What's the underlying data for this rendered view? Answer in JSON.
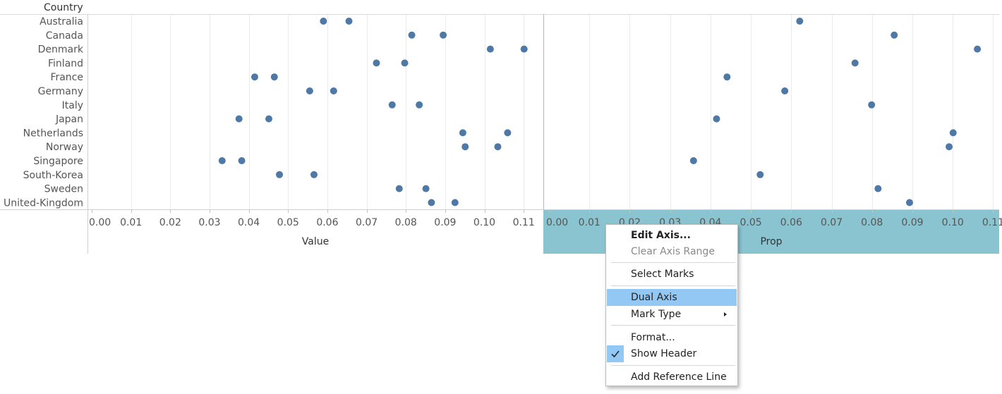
{
  "row_header": "Country",
  "colors": {
    "mark": "#4e79a7",
    "selected_axis_bg": "#8ac4d0",
    "gridline": "#ececec",
    "menu_highlight": "#93c8f4"
  },
  "chart_data": [
    {
      "type": "scatter",
      "title": "",
      "xlabel": "Value",
      "ylabel": "Country",
      "categories": [
        "Australia",
        "Canada",
        "Denmark",
        "Finland",
        "France",
        "Germany",
        "Italy",
        "Japan",
        "Netherlands",
        "Norway",
        "Singapore",
        "South-Korea",
        "Sweden",
        "United-Kingdom"
      ],
      "xlim": [
        0,
        0.115
      ],
      "x_ticks": [
        "0.00",
        "0.01",
        "0.02",
        "0.03",
        "0.04",
        "0.05",
        "0.06",
        "0.07",
        "0.08",
        "0.09",
        "0.10",
        "0.11"
      ],
      "series": [
        {
          "values": [
            0.059,
            0.0815,
            0.1015,
            0.0725,
            0.0415,
            0.0555,
            0.0765,
            0.0375,
            0.0945,
            0.0951,
            0.0332,
            0.0478,
            0.0783,
            0.0865
          ]
        },
        {
          "values": [
            0.0655,
            0.0895,
            0.1101,
            0.0797,
            0.0465,
            0.0616,
            0.0834,
            0.0451,
            0.1059,
            0.1034,
            0.0382,
            0.0566,
            0.0851,
            0.0925
          ]
        }
      ],
      "grid": true
    },
    {
      "type": "scatter",
      "title": "",
      "xlabel": "Prop",
      "ylabel": "Country",
      "categories": [
        "Australia",
        "Canada",
        "Denmark",
        "Finland",
        "France",
        "Germany",
        "Italy",
        "Japan",
        "Netherlands",
        "Norway",
        "Singapore",
        "South-Korea",
        "Sweden",
        "United-Kingdom"
      ],
      "xlim": [
        0,
        0.1115
      ],
      "x_ticks": [
        "0.00",
        "0.01",
        "0.02",
        "0.03",
        "0.04",
        "0.05",
        "0.06",
        "0.07",
        "0.08",
        "0.09",
        "0.10",
        "0.11"
      ],
      "series": [
        {
          "values": [
            0.0621,
            0.0855,
            0.1061,
            0.0758,
            0.0441,
            0.0584,
            0.0799,
            0.0415,
            0.1001,
            0.0991,
            0.0358,
            0.0523,
            0.0815,
            0.0893
          ]
        }
      ],
      "grid": true,
      "axis_selected": true
    }
  ],
  "context_menu": {
    "items": [
      {
        "label": "Edit Axis...",
        "style": "bold"
      },
      {
        "label": "Clear Axis Range",
        "style": "disabled"
      },
      {
        "label": "Select Marks"
      },
      {
        "label": "Dual Axis",
        "style": "highlighted"
      },
      {
        "label": "Mark Type",
        "submenu": true
      },
      {
        "label": "Format..."
      },
      {
        "label": "Show Header",
        "checked": true
      },
      {
        "label": "Add Reference Line"
      }
    ]
  }
}
